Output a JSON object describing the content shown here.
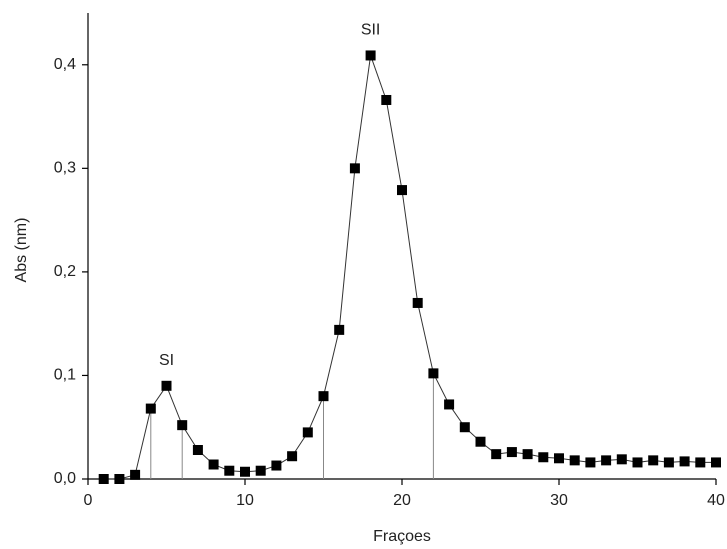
{
  "chart_data": {
    "type": "line",
    "x_label": "Fraçoes",
    "y_label": "Abs (nm)",
    "x": [
      1,
      2,
      3,
      4,
      5,
      6,
      7,
      8,
      9,
      10,
      11,
      12,
      13,
      14,
      15,
      16,
      17,
      18,
      19,
      20,
      21,
      22,
      23,
      24,
      25,
      26,
      27,
      28,
      29,
      30,
      31,
      32,
      33,
      34,
      35,
      36,
      37,
      38,
      39,
      40
    ],
    "series": [
      {
        "color": "#000000",
        "values": [
          0.0,
          0.0,
          0.004,
          0.068,
          0.09,
          0.052,
          0.028,
          0.014,
          0.008,
          0.007,
          0.008,
          0.013,
          0.022,
          0.045,
          0.08,
          0.144,
          0.3,
          0.409,
          0.366,
          0.279,
          0.17,
          0.102,
          0.072,
          0.05,
          0.036,
          0.024,
          0.026,
          0.024,
          0.021,
          0.02,
          0.018,
          0.016,
          0.018,
          0.019,
          0.016,
          0.018,
          0.016,
          0.017,
          0.016,
          0.016
        ]
      }
    ],
    "drop_lines": [
      4,
      6,
      15,
      22
    ],
    "annotations": [
      {
        "text": "SI",
        "x": 5
      },
      {
        "text": "SII",
        "x": 18
      }
    ],
    "xlim": [
      0,
      40
    ],
    "xticks": [
      0,
      10,
      20,
      30,
      40
    ],
    "ylim": [
      0,
      0.45
    ],
    "yticks": [
      {
        "value": 0,
        "label": "0,0"
      },
      {
        "value": 0.1,
        "label": "0,1"
      },
      {
        "value": 0.2,
        "label": "0,2"
      },
      {
        "value": 0.3,
        "label": "0,3"
      },
      {
        "value": 0.4,
        "label": "0,4"
      }
    ]
  }
}
